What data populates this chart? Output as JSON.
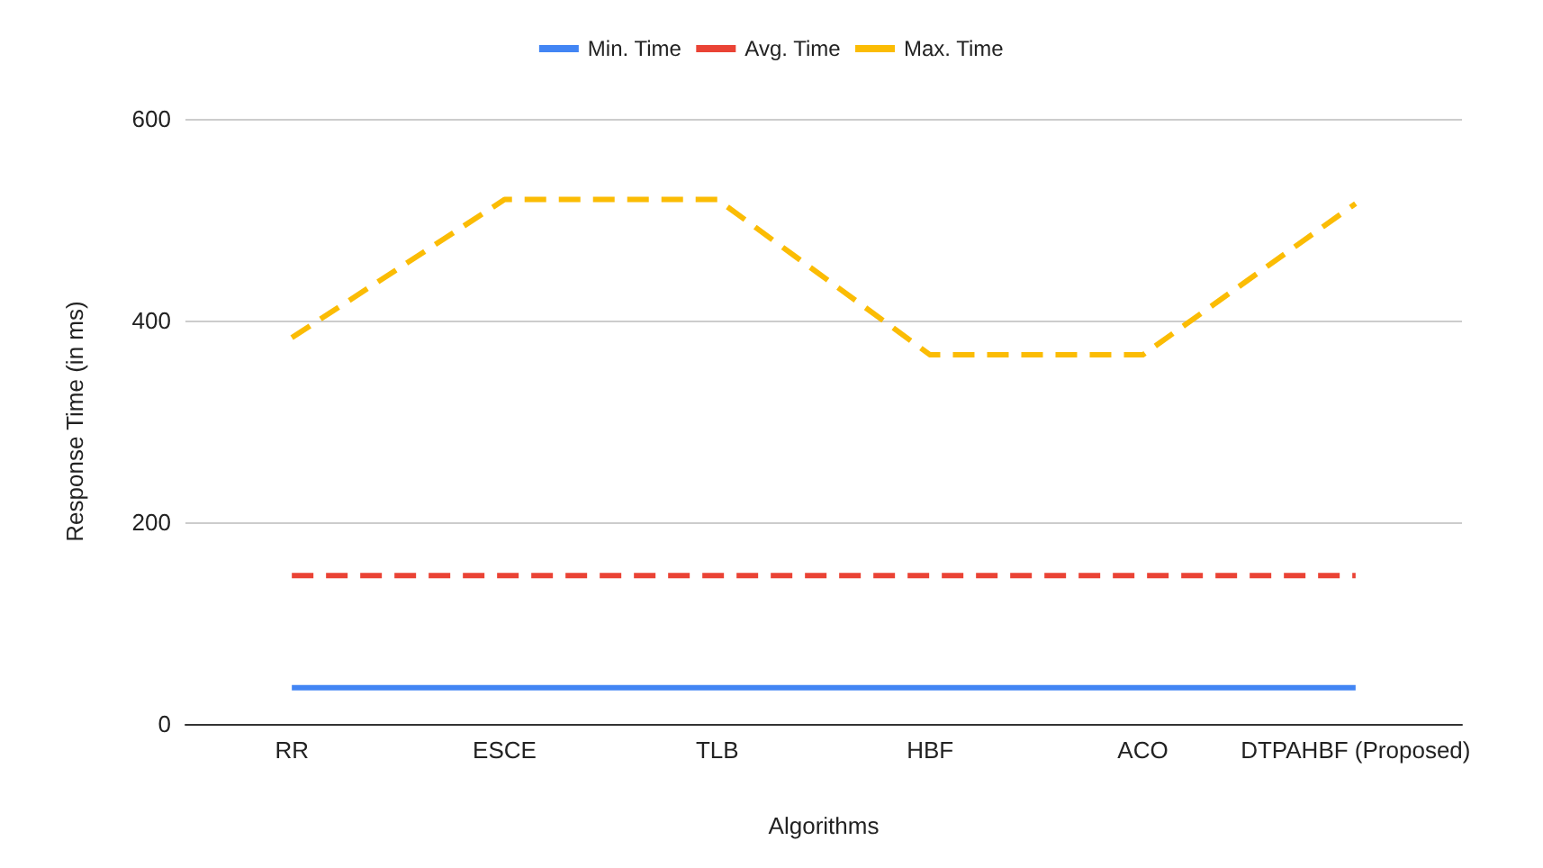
{
  "chart_data": {
    "type": "line",
    "xlabel": "Algorithms",
    "ylabel": "Response Time (in ms)",
    "categories": [
      "RR",
      "ESCE",
      "TLB",
      "HBF",
      "ACO",
      "DTPAHBF (Proposed)"
    ],
    "series": [
      {
        "name": "Min. Time",
        "color": "#4285f4",
        "line_style": "solid",
        "values": [
          36,
          36,
          36,
          36,
          36,
          36
        ]
      },
      {
        "name": "Avg. Time",
        "color": "#ea4335",
        "line_style": "dashed",
        "values": [
          147,
          147,
          147,
          147,
          147,
          147
        ]
      },
      {
        "name": "Max. Time",
        "color": "#fbbc04",
        "line_style": "dashed",
        "values": [
          383,
          520,
          520,
          366,
          366,
          516
        ]
      }
    ],
    "ylim": [
      0,
      600
    ],
    "yticks": [
      0,
      200,
      400,
      600
    ],
    "grid": "y",
    "legend": "top",
    "marker": "none"
  }
}
